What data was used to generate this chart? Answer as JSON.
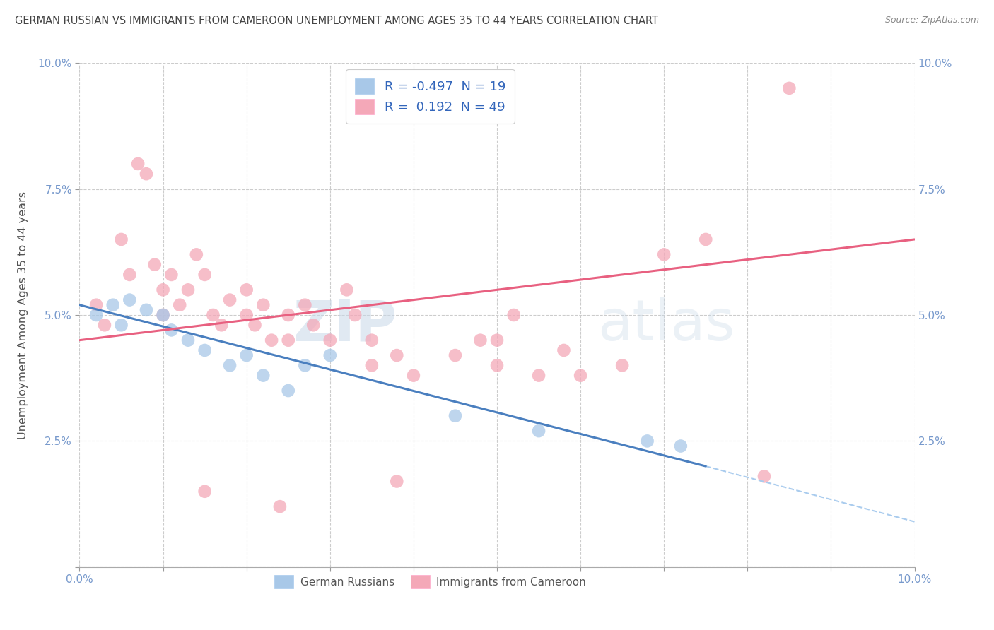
{
  "title": "GERMAN RUSSIAN VS IMMIGRANTS FROM CAMEROON UNEMPLOYMENT AMONG AGES 35 TO 44 YEARS CORRELATION CHART",
  "source": "Source: ZipAtlas.com",
  "ylabel": "Unemployment Among Ages 35 to 44 years",
  "xlim": [
    0.0,
    10.0
  ],
  "ylim": [
    0.0,
    10.0
  ],
  "ytick_labels": [
    "",
    "2.5%",
    "5.0%",
    "7.5%",
    "10.0%"
  ],
  "xtick_labels": [
    "0.0%",
    "",
    "",
    "",
    "",
    "",
    "",
    "",
    "",
    "",
    "10.0%"
  ],
  "watermark_zip": "ZIP",
  "watermark_atlas": "atlas",
  "legend_label1": "German Russians",
  "legend_label2": "Immigrants from Cameroon",
  "R1": -0.497,
  "N1": 19,
  "R2": 0.192,
  "N2": 49,
  "color_blue": "#A8C8E8",
  "color_pink": "#F4A8B8",
  "line_color_blue": "#4A7FBF",
  "line_color_pink": "#E86080",
  "line_color_dashed": "#AACCEE",
  "background_color": "#FFFFFF",
  "grid_color": "#CCCCCC",
  "title_color": "#444444",
  "tick_color": "#7799CC",
  "ylabel_color": "#555555",
  "scatter_blue_x": [
    0.2,
    0.4,
    0.5,
    0.6,
    0.8,
    1.0,
    1.1,
    1.3,
    1.5,
    1.8,
    2.0,
    2.2,
    2.5,
    2.7,
    3.0,
    4.5,
    5.5,
    6.8,
    7.2
  ],
  "scatter_blue_y": [
    5.0,
    5.2,
    4.8,
    5.3,
    5.1,
    5.0,
    4.7,
    4.5,
    4.3,
    4.0,
    4.2,
    3.8,
    3.5,
    4.0,
    4.2,
    3.0,
    2.7,
    2.5,
    2.4
  ],
  "scatter_pink_x": [
    0.2,
    0.3,
    0.5,
    0.6,
    0.7,
    0.8,
    0.9,
    1.0,
    1.0,
    1.1,
    1.2,
    1.3,
    1.4,
    1.5,
    1.6,
    1.7,
    1.8,
    2.0,
    2.0,
    2.1,
    2.2,
    2.3,
    2.5,
    2.5,
    2.7,
    2.8,
    3.0,
    3.2,
    3.3,
    3.5,
    3.5,
    3.8,
    4.0,
    4.5,
    4.8,
    5.0,
    5.2,
    5.5,
    5.8,
    6.0,
    6.5,
    7.0,
    7.5,
    8.2,
    8.5,
    1.5,
    2.4,
    3.8,
    5.0
  ],
  "scatter_pink_y": [
    5.2,
    4.8,
    6.5,
    5.8,
    8.0,
    7.8,
    6.0,
    5.5,
    5.0,
    5.8,
    5.2,
    5.5,
    6.2,
    5.8,
    5.0,
    4.8,
    5.3,
    5.0,
    5.5,
    4.8,
    5.2,
    4.5,
    5.0,
    4.5,
    5.2,
    4.8,
    4.5,
    5.5,
    5.0,
    4.5,
    4.0,
    4.2,
    3.8,
    4.2,
    4.5,
    4.0,
    5.0,
    3.8,
    4.3,
    3.8,
    4.0,
    6.2,
    6.5,
    1.8,
    9.5,
    1.5,
    1.2,
    1.7,
    4.5
  ],
  "blue_line_start_x": 0.0,
  "blue_line_start_y": 5.2,
  "blue_line_end_x": 7.5,
  "blue_line_end_y": 2.0,
  "blue_dashed_start_x": 7.5,
  "blue_dashed_start_y": 2.0,
  "blue_dashed_end_x": 10.0,
  "blue_dashed_end_y": 0.9,
  "pink_line_start_x": 0.0,
  "pink_line_start_y": 4.5,
  "pink_line_end_x": 10.0,
  "pink_line_end_y": 6.5
}
